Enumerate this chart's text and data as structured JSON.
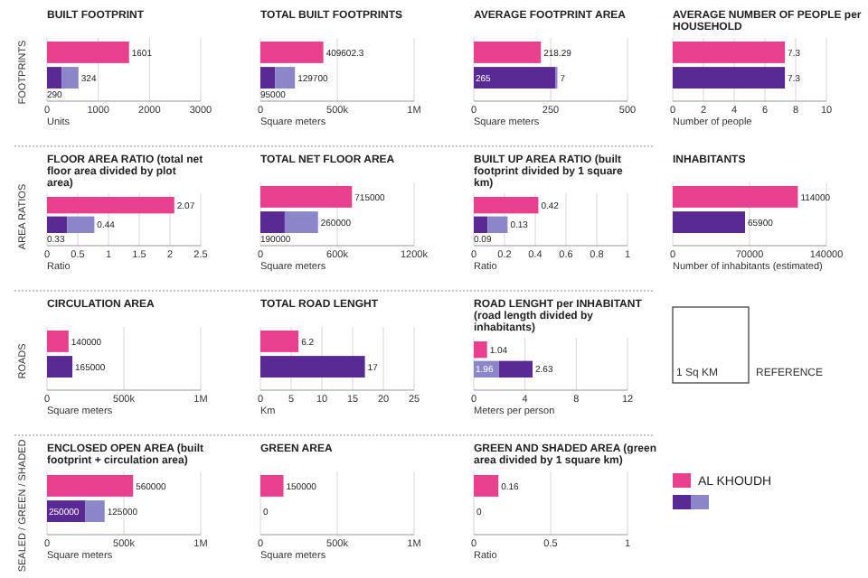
{
  "chart_data": [
    {
      "type": "bar",
      "orientation": "horizontal",
      "stacked": true,
      "data_labels": true,
      "grid": "x",
      "ylabel": "FOOTPRINTS",
      "title": "BUILT FOOTPRINT",
      "xlabel": "Units",
      "categories": [
        null,
        null
      ],
      "xlim": [
        0,
        3000
      ],
      "xticks": [
        0,
        1000,
        2000,
        3000
      ],
      "series": [
        {
          "color": "#e8408f",
          "values": [
            1601,
            null
          ]
        },
        {
          "color": "#5a2a94",
          "values": [
            null,
            290
          ]
        },
        {
          "color": "#8b86c9",
          "values": [
            null,
            324
          ]
        }
      ]
    },
    {
      "type": "bar",
      "orientation": "horizontal",
      "stacked": true,
      "data_labels": true,
      "grid": "x",
      "title": "TOTAL BUILT FOOTPRINTS",
      "xlabel": "Square meters",
      "categories": [
        null,
        null
      ],
      "xlim": [
        0,
        1000000
      ],
      "xticks": [
        {
          "value": 0,
          "label": "0"
        },
        {
          "value": 500000,
          "label": "500k"
        },
        {
          "value": 1000000,
          "label": "1M"
        }
      ],
      "series": [
        {
          "color": "#e8408f",
          "values": [
            409602.3,
            null
          ]
        },
        {
          "color": "#5a2a94",
          "values": [
            null,
            95000
          ]
        },
        {
          "color": "#8b86c9",
          "values": [
            null,
            129700
          ]
        }
      ]
    },
    {
      "type": "bar",
      "orientation": "horizontal",
      "stacked": true,
      "data_labels": true,
      "grid": "x",
      "title": "AVERAGE FOOTPRINT AREA",
      "xlabel": "Square meters",
      "categories": [
        null,
        null
      ],
      "xlim": [
        0,
        500
      ],
      "xticks": [
        0,
        250,
        500
      ],
      "series": [
        {
          "color": "#e8408f",
          "values": [
            218.29,
            null
          ]
        },
        {
          "color": "#5a2a94",
          "values": [
            null,
            265
          ]
        },
        {
          "color": "#8b86c9",
          "values": [
            null,
            7
          ]
        }
      ]
    },
    {
      "type": "bar",
      "orientation": "horizontal",
      "stacked": true,
      "data_labels": true,
      "grid": "x",
      "title": "AVERAGE NUMBER OF PEOPLE per HOUSEHOLD",
      "xlabel": "Number of people",
      "categories": [
        null,
        null
      ],
      "xlim": [
        0,
        10
      ],
      "xticks": [
        0,
        2,
        4,
        6,
        8,
        10
      ],
      "series": [
        {
          "color": "#e8408f",
          "values": [
            7.3,
            null
          ]
        },
        {
          "color": "#5a2a94",
          "values": [
            null,
            7.3
          ]
        }
      ]
    },
    {
      "type": "bar",
      "orientation": "horizontal",
      "stacked": true,
      "data_labels": true,
      "grid": "x",
      "ylabel": "AREA RATIOS",
      "title": "FLOOR AREA RATIO (total net floor area divided by plot area)",
      "xlabel": "Ratio",
      "categories": [
        null,
        null
      ],
      "xlim": [
        0,
        2.5
      ],
      "xticks": [
        0,
        0.5,
        1,
        1.5,
        2,
        2.5
      ],
      "series": [
        {
          "color": "#e8408f",
          "values": [
            2.07,
            null
          ]
        },
        {
          "color": "#5a2a94",
          "values": [
            null,
            0.33
          ]
        },
        {
          "color": "#8b86c9",
          "values": [
            null,
            0.44
          ]
        }
      ]
    },
    {
      "type": "bar",
      "orientation": "horizontal",
      "stacked": true,
      "data_labels": true,
      "grid": "x",
      "title": "TOTAL NET FLOOR AREA",
      "xlabel": "Square meters",
      "categories": [
        null,
        null
      ],
      "xlim": [
        0,
        1200000
      ],
      "xticks": [
        {
          "value": 0,
          "label": "0"
        },
        {
          "value": 600000,
          "label": "600k"
        },
        {
          "value": 1200000,
          "label": "1200k"
        }
      ],
      "series": [
        {
          "color": "#e8408f",
          "values": [
            715000,
            null
          ]
        },
        {
          "color": "#5a2a94",
          "values": [
            null,
            190000
          ]
        },
        {
          "color": "#8b86c9",
          "values": [
            null,
            260000
          ]
        }
      ]
    },
    {
      "type": "bar",
      "orientation": "horizontal",
      "stacked": true,
      "data_labels": true,
      "grid": "x",
      "title": "BUILT UP AREA RATIO (built footprint divided by 1 square km)",
      "xlabel": "Ratio",
      "categories": [
        null,
        null
      ],
      "xlim": [
        0,
        1
      ],
      "xticks": [
        0,
        0.2,
        0.4,
        0.6,
        0.8,
        1
      ],
      "series": [
        {
          "color": "#e8408f",
          "values": [
            0.42,
            null
          ]
        },
        {
          "color": "#5a2a94",
          "values": [
            null,
            0.09
          ]
        },
        {
          "color": "#8b86c9",
          "values": [
            null,
            0.13
          ]
        }
      ]
    },
    {
      "type": "bar",
      "orientation": "horizontal",
      "stacked": true,
      "data_labels": true,
      "grid": "x",
      "title": "INHABITANTS",
      "xlabel": "Number of inhabitants (estimated)",
      "categories": [
        null,
        null
      ],
      "xlim": [
        0,
        140000
      ],
      "xticks": [
        0,
        70000,
        140000
      ],
      "series": [
        {
          "color": "#e8408f",
          "values": [
            114000,
            null
          ]
        },
        {
          "color": "#5a2a94",
          "values": [
            null,
            65900
          ]
        }
      ]
    },
    {
      "type": "bar",
      "orientation": "horizontal",
      "stacked": true,
      "data_labels": true,
      "grid": "x",
      "ylabel": "ROADS",
      "title": "CIRCULATION AREA",
      "xlabel": "Square meters",
      "categories": [
        null,
        null
      ],
      "xlim": [
        0,
        1000000
      ],
      "xticks": [
        {
          "value": 0,
          "label": "0"
        },
        {
          "value": 500000,
          "label": "500k"
        },
        {
          "value": 1000000,
          "label": "1M"
        }
      ],
      "series": [
        {
          "color": "#e8408f",
          "values": [
            140000,
            null
          ]
        },
        {
          "color": "#5a2a94",
          "values": [
            null,
            165000
          ]
        }
      ]
    },
    {
      "type": "bar",
      "orientation": "horizontal",
      "stacked": true,
      "data_labels": true,
      "grid": "x",
      "title": "TOTAL ROAD LENGHT",
      "xlabel": "Km",
      "categories": [
        null,
        null
      ],
      "xlim": [
        0,
        25
      ],
      "xticks": [
        0,
        5,
        10,
        15,
        20,
        25
      ],
      "series": [
        {
          "color": "#e8408f",
          "values": [
            6.2,
            null
          ]
        },
        {
          "color": "#5a2a94",
          "values": [
            null,
            17
          ]
        }
      ]
    },
    {
      "type": "bar",
      "orientation": "horizontal",
      "stacked": true,
      "data_labels": true,
      "grid": "x",
      "title": "ROAD LENGHT per INHABITANT (road length divided by inhabitants)",
      "xlabel": "Meters per person",
      "categories": [
        null,
        null
      ],
      "xlim": [
        0,
        12
      ],
      "xticks": [
        0,
        4,
        8,
        12
      ],
      "series": [
        {
          "color": "#e8408f",
          "values": [
            1.04,
            null
          ]
        },
        {
          "color": "#8b86c9",
          "values": [
            null,
            1.96
          ]
        },
        {
          "color": "#5a2a94",
          "values": [
            null,
            2.63
          ]
        }
      ]
    },
    {
      "type": "other",
      "annotations": [
        "1 Sq KM",
        "REFERENCE"
      ]
    },
    {
      "type": "bar",
      "orientation": "horizontal",
      "stacked": true,
      "data_labels": true,
      "grid": "x",
      "ylabel": "SEALED / GREEN / SHADED",
      "title": "ENCLOSED OPEN AREA (built footprint + circulation area)",
      "xlabel": "Square meters",
      "categories": [
        null,
        null
      ],
      "xlim": [
        0,
        1000000
      ],
      "xticks": [
        {
          "value": 0,
          "label": "0"
        },
        {
          "value": 500000,
          "label": "500k"
        },
        {
          "value": 1000000,
          "label": "1M"
        }
      ],
      "series": [
        {
          "color": "#e8408f",
          "values": [
            560000,
            null
          ]
        },
        {
          "color": "#5a2a94",
          "values": [
            null,
            250000
          ]
        },
        {
          "color": "#8b86c9",
          "values": [
            null,
            125000
          ]
        }
      ]
    },
    {
      "type": "bar",
      "orientation": "horizontal",
      "stacked": true,
      "data_labels": true,
      "grid": "x",
      "title": "GREEN AREA",
      "xlabel": "Square meters",
      "categories": [
        null,
        null
      ],
      "xlim": [
        0,
        1000000
      ],
      "xticks": [
        {
          "value": 0,
          "label": "0"
        },
        {
          "value": 500000,
          "label": "500k"
        },
        {
          "value": 1000000,
          "label": "1M"
        }
      ],
      "series": [
        {
          "color": "#e8408f",
          "values": [
            150000,
            null
          ]
        },
        {
          "color": "#5a2a94",
          "values": [
            null,
            0
          ]
        }
      ]
    },
    {
      "type": "bar",
      "orientation": "horizontal",
      "stacked": true,
      "data_labels": true,
      "grid": "x",
      "title": "GREEN AND SHADED AREA (green area divided by 1 square km)",
      "xlabel": "Ratio",
      "categories": [
        null,
        null
      ],
      "xlim": [
        0,
        1
      ],
      "xticks": [
        0,
        0.5,
        1
      ],
      "series": [
        {
          "color": "#e8408f",
          "values": [
            0.16,
            null
          ]
        },
        {
          "color": "#5a2a94",
          "values": [
            null,
            0
          ]
        }
      ]
    },
    {
      "type": "other",
      "series": [
        {
          "name": "AL KHOUDH",
          "color": "#e8408f"
        },
        {
          "color": "#5a2a94"
        },
        {
          "color": "#8b86c9"
        }
      ]
    }
  ]
}
